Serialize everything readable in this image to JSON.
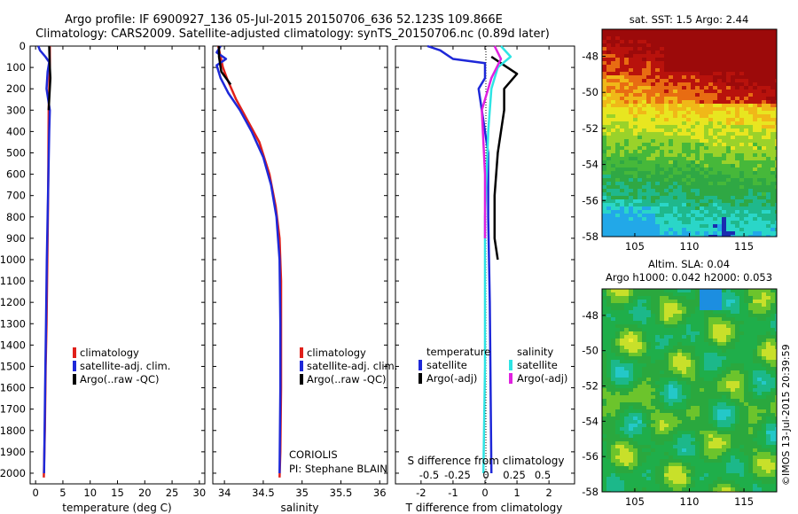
{
  "header": {
    "line1": "Argo profile: IF 6900927_136 05-Jul-2015 20150706_636 52.123S 109.866E",
    "line2": "Climatology: CARS2009. Satellite-adjusted climatology: synTS_20150706.nc (0.89d later)"
  },
  "colors": {
    "climatology": "#e0201a",
    "satellite_adj": "#1e28d8",
    "argo": "#000000",
    "sal_satellite": "#2ee4e4",
    "sal_argo": "#e020e0"
  },
  "chart_data": [
    {
      "type": "line",
      "xlabel": "temperature (deg C)",
      "xlim": [
        -1,
        31
      ],
      "xticks": [
        "0",
        "5",
        "10",
        "15",
        "20",
        "25",
        "30"
      ],
      "ylim": [
        2050,
        0
      ],
      "yticks": [
        "0",
        "100",
        "200",
        "300",
        "400",
        "500",
        "600",
        "700",
        "800",
        "900",
        "1000",
        "1100",
        "1200",
        "1300",
        "1400",
        "1500",
        "1600",
        "1700",
        "1800",
        "1900",
        "2000"
      ],
      "legend": [
        "climatology",
        "satellite-adj. clim.",
        "Argo(..raw -QC)"
      ],
      "series": [
        {
          "name": "climatology",
          "x": [
            2.6,
            2.6,
            2.5,
            2.4,
            2.35,
            2.3,
            2.2,
            2.1,
            2.0,
            1.85,
            1.7,
            1.5
          ],
          "y": [
            0,
            100,
            200,
            300,
            500,
            700,
            900,
            1100,
            1300,
            1500,
            1800,
            2020
          ]
        },
        {
          "name": "satellite-adj. clim.",
          "x": [
            0.5,
            0.8,
            1.8,
            2.5,
            2.2,
            2.0,
            2.6,
            2.5,
            2.35,
            2.2,
            2.05,
            1.9,
            1.75,
            1.55
          ],
          "y": [
            0,
            20,
            50,
            75,
            120,
            200,
            300,
            400,
            600,
            800,
            1000,
            1300,
            1600,
            2000
          ]
        },
        {
          "name": "Argo(..raw -QC)",
          "x": [
            2.5,
            2.6,
            2.7,
            2.5,
            2.4
          ],
          "y": [
            0,
            100,
            150,
            250,
            300
          ]
        }
      ]
    },
    {
      "type": "line",
      "xlabel": "salinity",
      "xlim": [
        33.85,
        36.1
      ],
      "xticks": [
        "34",
        "34.5",
        "35",
        "35.5",
        "36"
      ],
      "ylim": [
        2050,
        0
      ],
      "legend": [
        "climatology",
        "satellite-adj. clim.",
        "Argo(..raw -QC)"
      ],
      "annotation": [
        "CORIOLIS",
        "PI: Stephane BLAIN"
      ],
      "series": [
        {
          "name": "climatology",
          "x": [
            33.92,
            33.95,
            33.98,
            34.03,
            34.15,
            34.3,
            34.45,
            34.58,
            34.66,
            34.71,
            34.73,
            34.73,
            34.73,
            34.72,
            34.71
          ],
          "y": [
            0,
            50,
            100,
            150,
            250,
            350,
            450,
            600,
            750,
            900,
            1100,
            1300,
            1600,
            1900,
            2020
          ]
        },
        {
          "name": "satellite-adj. clim.",
          "x": [
            33.95,
            33.9,
            34.02,
            33.9,
            33.95,
            34.05,
            34.2,
            34.35,
            34.5,
            34.6,
            34.67,
            34.71,
            34.72,
            34.72,
            34.71
          ],
          "y": [
            0,
            30,
            60,
            90,
            150,
            220,
            300,
            400,
            520,
            650,
            800,
            1000,
            1300,
            1600,
            2000
          ]
        },
        {
          "name": "Argo(..raw -QC)",
          "x": [
            33.93,
            33.93,
            33.96,
            34.02,
            34.08
          ],
          "y": [
            0,
            50,
            120,
            150,
            180
          ]
        }
      ]
    },
    {
      "type": "line",
      "xlabel": "T difference from climatology",
      "xlabel_top": "S difference from climatology",
      "xlim": [
        -2.8,
        2.8
      ],
      "xticks": [
        "-2",
        "-1",
        "0",
        "1",
        "2"
      ],
      "xticks_top": [
        "-0.5",
        "-0.25",
        "0",
        "0.25",
        "0.5"
      ],
      "ylim": [
        2050,
        0
      ],
      "legend_groups": [
        "temperature",
        "salinity"
      ],
      "legend": [
        "satellite",
        "Argo(-adj)",
        "satellite",
        "Argo(-adj)"
      ],
      "series": [
        {
          "name": "temperature satellite",
          "x": [
            -1.8,
            -1.4,
            -1.0,
            0.0,
            0.0,
            -0.2,
            -0.1,
            0.1,
            0.1,
            0.15,
            0.2
          ],
          "y": [
            0,
            20,
            60,
            80,
            150,
            200,
            300,
            500,
            800,
            1200,
            2000
          ]
        },
        {
          "name": "temperature Argo(-adj)",
          "x": [
            0.2,
            0.6,
            1.0,
            0.6,
            0.6,
            0.4,
            0.3,
            0.3,
            0.4
          ],
          "y": [
            50,
            90,
            130,
            200,
            300,
            500,
            700,
            900,
            1000
          ]
        },
        {
          "name": "salinity satellite",
          "x": [
            0.5,
            0.8,
            0.4,
            0.2,
            0.1,
            0.0,
            0.0,
            -0.05
          ],
          "y": [
            0,
            50,
            100,
            200,
            400,
            800,
            1500,
            2000
          ]
        },
        {
          "name": "salinity Argo(-adj)",
          "x": [
            0.3,
            0.5,
            0.2,
            -0.1,
            0.0,
            0.0
          ],
          "y": [
            0,
            60,
            150,
            300,
            600,
            900
          ]
        }
      ]
    },
    {
      "type": "heatmap",
      "title": "sat. SST: 1.5 Argo: 2.44",
      "xticks": [
        "105",
        "110",
        "115"
      ],
      "yticks": [
        "-48",
        "-50",
        "-52",
        "-54",
        "-56",
        "-58"
      ],
      "xlim": [
        102,
        118
      ],
      "ylim": [
        -58,
        -46.5
      ]
    },
    {
      "type": "heatmap",
      "title_lines": [
        "Altim. SLA: 0.04",
        "Argo h1000: 0.042 h2000: 0.053"
      ],
      "xticks": [
        "105",
        "110",
        "115"
      ],
      "yticks": [
        "-48",
        "-50",
        "-52",
        "-54",
        "-56",
        "-58"
      ],
      "xlim": [
        102,
        118
      ],
      "ylim": [
        -58,
        -46.5
      ]
    }
  ],
  "credit": "©IMOS 13-Jul-2015 20:39:59"
}
